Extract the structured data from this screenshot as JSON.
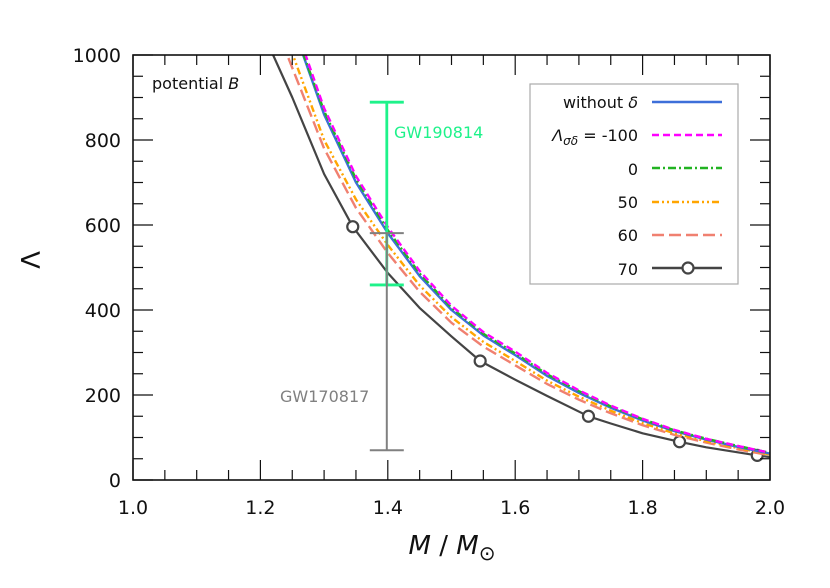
{
  "chart_data": {
    "type": "line",
    "title": "",
    "annotation": "potential B",
    "xlabel": "M / M⊙",
    "ylabel": "Λ",
    "xlim": [
      1.0,
      2.0
    ],
    "ylim": [
      0,
      1000
    ],
    "xticks": [
      "1.0",
      "1.2",
      "1.4",
      "1.6",
      "1.8",
      "2.0"
    ],
    "yticks": [
      "0",
      "200",
      "400",
      "600",
      "800",
      "1000"
    ],
    "grid": false,
    "legend_position": "upper right",
    "series": [
      {
        "name": "without δ",
        "color": "#3d6fd9",
        "style": "solid",
        "x": [
          1.25,
          1.267,
          1.3,
          1.35,
          1.4,
          1.45,
          1.5,
          1.55,
          1.6,
          1.65,
          1.7,
          1.75,
          1.8,
          1.85,
          1.9,
          1.95,
          2.0
        ],
        "y": [
          1100,
          1000,
          860,
          700,
          581,
          480,
          400,
          340,
          294,
          245,
          205,
          170,
          140,
          115,
          95,
          78,
          62
        ]
      },
      {
        "name": "Λσδ = -100",
        "color": "#ff00ff",
        "style": "dashed",
        "x": [
          1.25,
          1.271,
          1.3,
          1.35,
          1.4,
          1.45,
          1.5,
          1.55,
          1.6,
          1.65,
          1.7,
          1.75,
          1.8,
          1.85,
          1.9,
          1.95,
          2.0
        ],
        "y": [
          1130,
          1000,
          875,
          715,
          595,
          492,
          410,
          348,
          302,
          252,
          211,
          175,
          144,
          118,
          97,
          80,
          64
        ]
      },
      {
        "name": "0",
        "color": "#22b322",
        "style": "dashdot",
        "x": [
          1.25,
          1.268,
          1.3,
          1.35,
          1.4,
          1.45,
          1.5,
          1.55,
          1.6,
          1.65,
          1.7,
          1.75,
          1.8,
          1.85,
          1.9,
          1.95,
          2.0
        ],
        "y": [
          1115,
          1000,
          868,
          708,
          588,
          486,
          405,
          344,
          298,
          249,
          209,
          173,
          143,
          117,
          97,
          80,
          64
        ]
      },
      {
        "name": "50",
        "color": "#ffa500",
        "style": "dashdotdot",
        "x": [
          1.24,
          1.251,
          1.3,
          1.35,
          1.4,
          1.45,
          1.5,
          1.55,
          1.6,
          1.65,
          1.7,
          1.75,
          1.8,
          1.85,
          1.9,
          1.95,
          2.0
        ],
        "y": [
          1060,
          1000,
          800,
          660,
          553,
          458,
          383,
          325,
          280,
          234,
          196,
          163,
          134,
          110,
          91,
          75,
          60
        ]
      },
      {
        "name": "60",
        "color": "#f08070",
        "style": "longdash",
        "x": [
          1.23,
          1.242,
          1.3,
          1.35,
          1.4,
          1.45,
          1.5,
          1.55,
          1.6,
          1.65,
          1.7,
          1.75,
          1.8,
          1.85,
          1.9,
          1.95,
          2.0
        ],
        "y": [
          1070,
          1000,
          780,
          640,
          534,
          443,
          370,
          314,
          270,
          226,
          189,
          157,
          129,
          106,
          88,
          72,
          58
        ]
      },
      {
        "name": "70",
        "color": "#444444",
        "style": "solid-marker",
        "x": [
          1.21,
          1.22,
          1.25,
          1.3,
          1.345,
          1.4,
          1.45,
          1.5,
          1.545,
          1.6,
          1.65,
          1.715,
          1.75,
          1.8,
          1.858,
          1.9,
          1.98,
          2.0
        ],
        "y": [
          1060,
          1000,
          900,
          720,
          596,
          487,
          405,
          338,
          280,
          236,
          198,
          150,
          133,
          110,
          90,
          77,
          58,
          54
        ],
        "markers": {
          "x": [
            1.345,
            1.545,
            1.715,
            1.858,
            1.98
          ],
          "y": [
            596,
            280,
            150,
            90,
            58
          ]
        }
      }
    ],
    "error_bars": [
      {
        "label": "GW190814",
        "color": "#1ef28a",
        "x": 1.4,
        "ymin": 459,
        "ymax": 889
      },
      {
        "label": "GW170817",
        "color": "#808080",
        "x": 1.4,
        "ymin": 70,
        "ymax": 581
      }
    ]
  },
  "labels": {
    "annotation": "potential ",
    "annotation_italic": "B",
    "ylabel": "Λ",
    "xlabel_main": "M",
    "xlabel_sep": " / ",
    "xlabel_sun": "M",
    "xlabel_sun_sub": "⊙",
    "gw190814": "GW190814",
    "gw170817": "GW170817",
    "legend": [
      {
        "text": "without ",
        "italic": "δ"
      },
      {
        "text": "Λ",
        "sub": "σδ",
        "rest": " = -100"
      },
      {
        "text": "0"
      },
      {
        "text": "50"
      },
      {
        "text": "60"
      },
      {
        "text": "70"
      }
    ]
  }
}
